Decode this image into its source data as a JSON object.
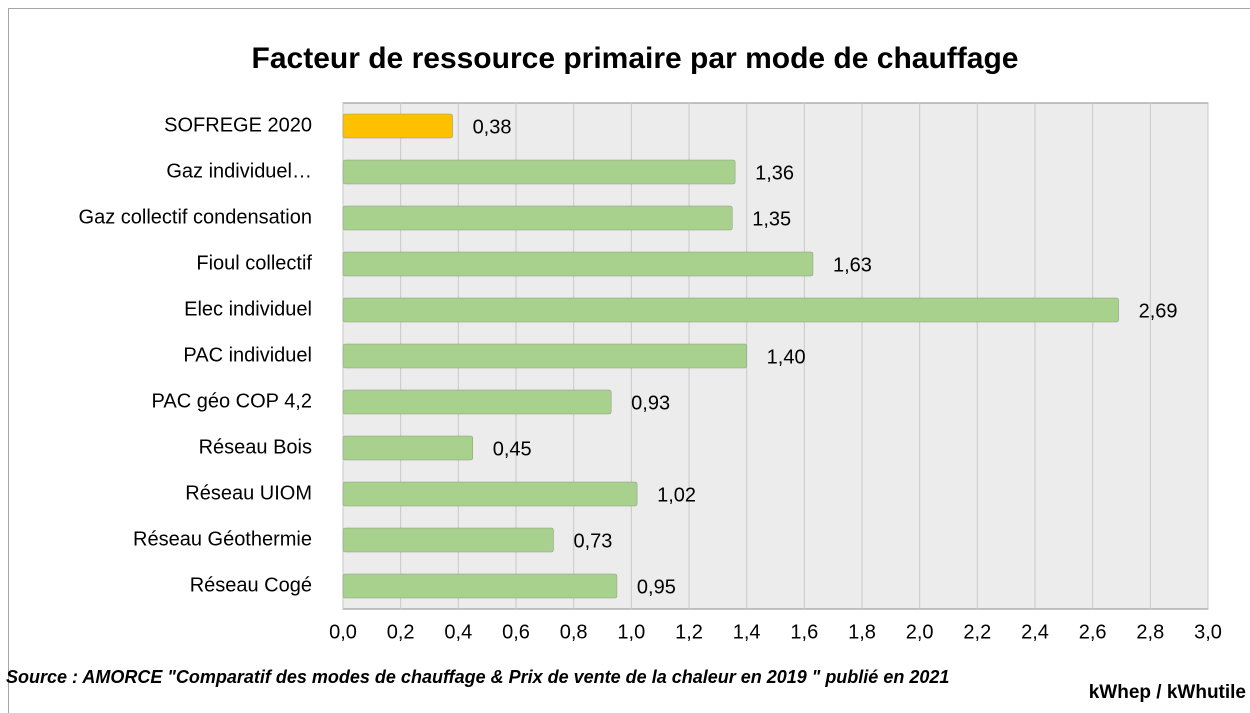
{
  "chart_data": {
    "type": "bar",
    "orientation": "horizontal",
    "title": "Facteur de ressource primaire par mode de chauffage",
    "categories": [
      "SOFREGE 2020",
      "Gaz individuel…",
      "Gaz collectif condensation",
      "Fioul collectif",
      "Elec individuel",
      "PAC individuel",
      "PAC géo COP 4,2",
      "Réseau Bois",
      "Réseau UIOM",
      "Réseau Géothermie",
      "Réseau Cogé"
    ],
    "values": [
      0.38,
      1.36,
      1.35,
      1.63,
      2.69,
      1.4,
      0.93,
      0.45,
      1.02,
      0.73,
      0.95
    ],
    "value_labels": [
      "0,38",
      "1,36",
      "1,35",
      "1,63",
      "2,69",
      "1,40",
      "0,93",
      "0,45",
      "1,02",
      "0,73",
      "0,95"
    ],
    "colors": [
      "#ffc000",
      "#a9d18e",
      "#a9d18e",
      "#a9d18e",
      "#a9d18e",
      "#a9d18e",
      "#a9d18e",
      "#a9d18e",
      "#a9d18e",
      "#a9d18e",
      "#a9d18e"
    ],
    "label_colors": [
      "#000000",
      "#548235",
      "#548235",
      "#548235",
      "#548235",
      "#548235",
      "#548235",
      "#548235",
      "#548235",
      "#548235",
      "#548235"
    ],
    "xlim": [
      0,
      3
    ],
    "xticks": [
      {
        "value": 0,
        "label": "0,0"
      },
      {
        "value": 0.2,
        "label": "0,2"
      },
      {
        "value": 0.4,
        "label": "0,4"
      },
      {
        "value": 0.6,
        "label": "0,6"
      },
      {
        "value": 0.8,
        "label": "0,8"
      },
      {
        "value": 1,
        "label": "1,0"
      },
      {
        "value": 1.2,
        "label": "1,2"
      },
      {
        "value": 1.4,
        "label": "1,4"
      },
      {
        "value": 1.6,
        "label": "1,6"
      },
      {
        "value": 1.8,
        "label": "1,8"
      },
      {
        "value": 2,
        "label": "2,0"
      },
      {
        "value": 2.2,
        "label": "2,2"
      },
      {
        "value": 2.4,
        "label": "2,4"
      },
      {
        "value": 2.6,
        "label": "2,6"
      },
      {
        "value": 2.8,
        "label": "2,8"
      },
      {
        "value": 3,
        "label": "3,0"
      }
    ],
    "xlabel": "kWhep / kWhutile",
    "source": "Source : AMORCE \"Comparatif des modes de chauffage & Prix de vente de la chaleur en 2019 \" publié en 2021",
    "grid": true
  }
}
